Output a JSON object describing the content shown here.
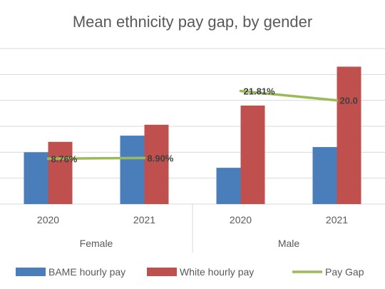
{
  "chart_data": {
    "type": "bar",
    "title": "Mean ethnicity pay gap, by gender",
    "groups": [
      "Female",
      "Male"
    ],
    "categories": [
      "2020",
      "2021",
      "2020",
      "2021"
    ],
    "category_groups": [
      0,
      0,
      1,
      1
    ],
    "series": [
      {
        "name": "BAME hourly pay",
        "type": "bar",
        "color": "#4a7ebb",
        "values": [
          10.0,
          13.2,
          7.0,
          11.0
        ]
      },
      {
        "name": "White hourly pay",
        "type": "bar",
        "color": "#c0504d",
        "values": [
          12.0,
          15.3,
          19.0,
          26.5
        ]
      },
      {
        "name": "Pay Gap",
        "type": "line",
        "color": "#9bbb59",
        "values": [
          8.76,
          8.9,
          21.81,
          20.0
        ]
      }
    ],
    "gap_labels": [
      "8.76%",
      "8.90%",
      "21.81%",
      "20.0"
    ],
    "y_gridlines": 6,
    "ylim": [
      0,
      30
    ],
    "legend_position": "bottom",
    "grid": true
  }
}
